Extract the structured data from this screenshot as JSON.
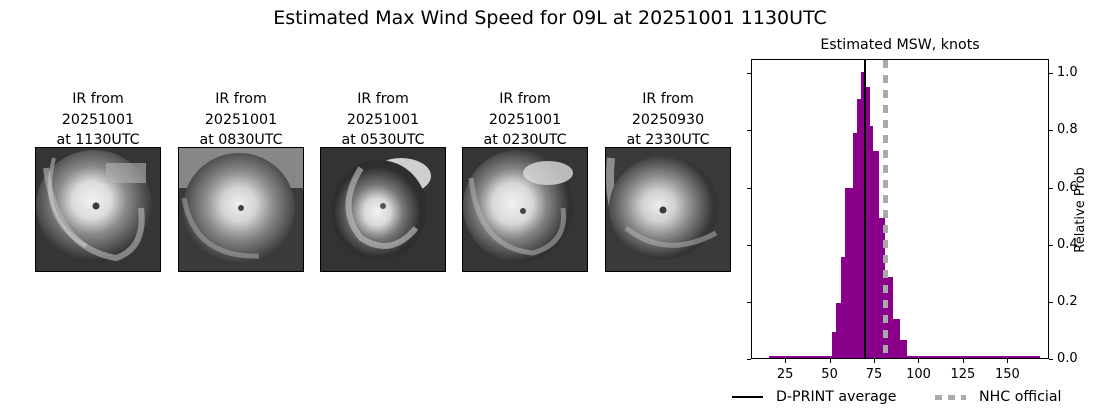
{
  "suptitle": "Estimated Max Wind Speed for 09L at 20251001 1130UTC",
  "ir_panels": [
    {
      "line1": "IR from",
      "line2": "20251001",
      "line3": "at 1130UTC",
      "icon": "satellite-ir-image"
    },
    {
      "line1": "IR from",
      "line2": "20251001",
      "line3": "at 0830UTC",
      "icon": "satellite-ir-image"
    },
    {
      "line1": "IR from",
      "line2": "20251001",
      "line3": "at 0530UTC",
      "icon": "satellite-ir-image"
    },
    {
      "line1": "IR from",
      "line2": "20251001",
      "line3": "at 0230UTC",
      "icon": "satellite-ir-image"
    },
    {
      "line1": "IR from",
      "line2": "20250930",
      "line3": "at 2330UTC",
      "icon": "satellite-ir-image"
    }
  ],
  "chart_data": {
    "type": "bar",
    "title": "Estimated MSW, knots",
    "xlabel": "",
    "ylabel": "Relative Prob",
    "xlim": [
      5.8,
      173.4
    ],
    "ylim": [
      0.0,
      1.05
    ],
    "xticks": [
      25,
      50,
      75,
      100,
      125,
      150
    ],
    "yticks": [
      0.0,
      0.2,
      0.4,
      0.6,
      0.8,
      1.0
    ],
    "ytick_labels": [
      "0.0",
      "0.2",
      "0.4",
      "0.6",
      "0.8",
      "1.0"
    ],
    "y_axis_position": "right",
    "grid": false,
    "bar_color": "#8b008b",
    "bins": [
      {
        "x0": 15.5,
        "x1": 50.7,
        "value": 0.007
      },
      {
        "x0": 50.7,
        "x1": 53.0,
        "value": 0.092
      },
      {
        "x0": 53.0,
        "x1": 55.7,
        "value": 0.192
      },
      {
        "x0": 55.7,
        "x1": 58.3,
        "value": 0.355
      },
      {
        "x0": 58.3,
        "x1": 62.5,
        "value": 0.594
      },
      {
        "x0": 62.5,
        "x1": 64.7,
        "value": 0.789
      },
      {
        "x0": 64.7,
        "x1": 67.0,
        "value": 0.905
      },
      {
        "x0": 67.0,
        "x1": 69.2,
        "value": 1.0
      },
      {
        "x0": 69.2,
        "x1": 71.9,
        "value": 0.947
      },
      {
        "x0": 71.9,
        "x1": 73.7,
        "value": 0.813
      },
      {
        "x0": 73.7,
        "x1": 77.1,
        "value": 0.723
      },
      {
        "x0": 77.1,
        "x1": 80.8,
        "value": 0.491
      },
      {
        "x0": 80.8,
        "x1": 84.9,
        "value": 0.284
      },
      {
        "x0": 84.9,
        "x1": 89.0,
        "value": 0.137
      },
      {
        "x0": 89.0,
        "x1": 92.7,
        "value": 0.063
      },
      {
        "x0": 92.7,
        "x1": 167.7,
        "value": 0.007
      }
    ],
    "lines": [
      {
        "name": "D-PRINT average",
        "x": 69.2,
        "style": "solid",
        "color": "#000000"
      },
      {
        "name": "NHC official",
        "x": 80.8,
        "style": "dotted",
        "color": "#a9a9a9"
      }
    ],
    "legend": {
      "position": "bottom",
      "entries": [
        {
          "label": "D-PRINT average",
          "style": "solid",
          "color": "#000000"
        },
        {
          "label": "NHC official",
          "style": "dotted",
          "color": "#a9a9a9"
        }
      ]
    }
  }
}
